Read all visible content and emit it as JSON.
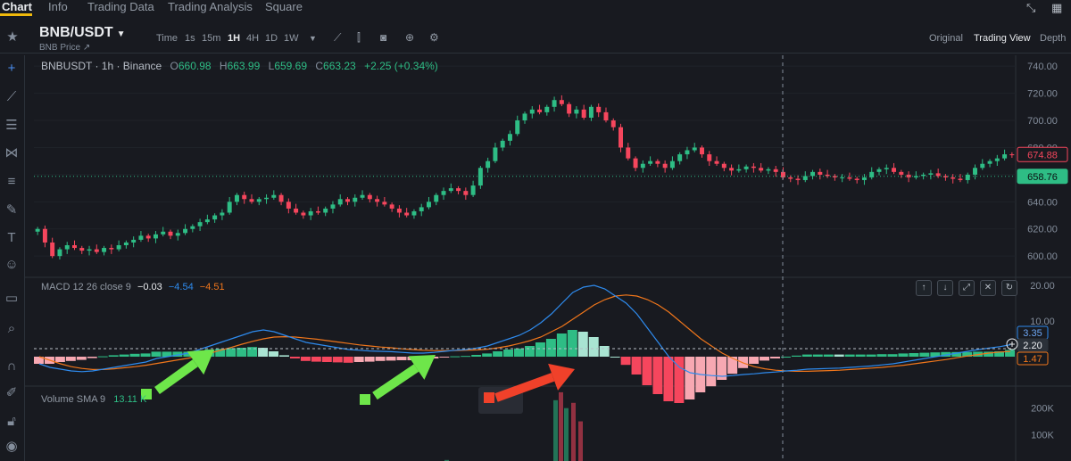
{
  "nav": {
    "tabs": [
      "Chart",
      "Info",
      "Trading Data",
      "Trading Analysis",
      "Square"
    ],
    "active": "Chart"
  },
  "toolbar": {
    "pair": "BNB/USDT",
    "subtitle": "BNB Price ↗",
    "timeframes": [
      "Time",
      "1s",
      "15m",
      "1H",
      "4H",
      "1D",
      "1W"
    ],
    "active_timeframe": "1H",
    "views": [
      "Original",
      "Trading View",
      "Depth"
    ],
    "active_view": "Trading View"
  },
  "icons": {
    "favorite": "star-icon",
    "tools": [
      "crosshair-icon",
      "trendline-icon",
      "horizontal-lines-icon",
      "pattern-icon",
      "fib-icon",
      "brush-icon",
      "text-icon",
      "emoji-icon",
      "ruler-icon",
      "zoom-icon",
      "magnet-icon",
      "lock-drawings-icon",
      "lock-icon",
      "eye-icon"
    ]
  },
  "legend": {
    "symbol": "BNBUSDT · 1h · Binance",
    "o": "660.98",
    "h": "663.99",
    "l": "659.69",
    "c": "663.23",
    "change": "+2.25 (+0.34%)"
  },
  "macd_legend": {
    "label": "MACD 12 26 close 9",
    "hist": "−0.03",
    "macd": "−4.54",
    "signal": "−4.51"
  },
  "volume_legend": {
    "label": "Volume SMA 9",
    "value": "13.11 K"
  },
  "price_axis": [
    "740.00",
    "720.00",
    "700.00",
    "680.00",
    "660.00",
    "640.00",
    "620.00",
    "600.00"
  ],
  "price_tags": {
    "current": "674.88",
    "crosshair": "658.76"
  },
  "macd_axis": [
    "20.00",
    "10.00"
  ],
  "macd_tags": {
    "macd": "3.35",
    "crosshair": "2.20",
    "signal": "1.47"
  },
  "volume_axis": [
    "200K",
    "100K"
  ],
  "colors": {
    "up": "#2ebd85",
    "down": "#f6465d",
    "macd": "#2e8bee",
    "signal": "#f0761b",
    "arrow_green": "#6ee64a",
    "arrow_red": "#f0412a",
    "background": "#181a20"
  },
  "chart_data": {
    "type": "candlestick",
    "timeframe": "1h",
    "price_range": [
      585,
      748
    ],
    "crosshair_price": 658.76,
    "last_price": 674.88,
    "closes": [
      620,
      610,
      600,
      605,
      608,
      606,
      604,
      605,
      603,
      606,
      605,
      608,
      610,
      612,
      615,
      613,
      616,
      618,
      615,
      617,
      620,
      622,
      625,
      627,
      630,
      632,
      640,
      645,
      642,
      640,
      642,
      643,
      645,
      640,
      635,
      632,
      630,
      633,
      632,
      635,
      638,
      642,
      640,
      643,
      645,
      642,
      640,
      638,
      635,
      632,
      630,
      633,
      636,
      640,
      645,
      648,
      650,
      648,
      645,
      652,
      665,
      670,
      680,
      685,
      690,
      700,
      705,
      708,
      706,
      710,
      715,
      712,
      705,
      708,
      702,
      710,
      706,
      700,
      695,
      680,
      672,
      665,
      668,
      670,
      668,
      665,
      670,
      675,
      678,
      680,
      675,
      670,
      668,
      665,
      663,
      664,
      666,
      665,
      663,
      664,
      662,
      658,
      657,
      656,
      659,
      662,
      660,
      659,
      658,
      658,
      657,
      656,
      658,
      662,
      664,
      665,
      662,
      660,
      658,
      659,
      660,
      661,
      659,
      658,
      657,
      656,
      660,
      665,
      668,
      670,
      672,
      675,
      674.88
    ],
    "macd_range": [
      -8,
      22
    ],
    "macd": [
      -2,
      -3,
      -3.5,
      -4,
      -4.2,
      -4,
      -3.5,
      -3,
      -2.5,
      -2,
      -1.5,
      -0.5,
      0,
      0.5,
      1,
      2,
      3,
      4,
      5,
      6,
      7,
      7.5,
      7,
      6,
      5,
      4,
      3.5,
      3,
      2.5,
      2,
      1.8,
      1.6,
      1.5,
      1.4,
      1.2,
      1,
      1,
      1.2,
      1.5,
      1.8,
      2,
      2.4,
      3,
      4,
      5,
      6,
      7.5,
      9.5,
      12,
      15,
      18,
      19.5,
      20,
      19,
      17,
      15,
      12,
      8,
      4,
      0,
      -3,
      -4.5,
      -5,
      -5.3,
      -5.5,
      -5.3,
      -5,
      -4.8,
      -4.5,
      -4.3,
      -4,
      -3.8,
      -3.5,
      -3.4,
      -3.3,
      -3.2,
      -3,
      -2.8,
      -2.6,
      -2.3,
      -2,
      -1.5,
      -1,
      -0.5,
      0,
      0.5,
      1,
      1.5,
      2,
      2.4,
      2.8,
      3.35
    ],
    "signal": [
      0,
      -1,
      -2,
      -2.8,
      -3.3,
      -3.6,
      -3.6,
      -3.4,
      -3.1,
      -2.8,
      -2.4,
      -1.9,
      -1.4,
      -0.9,
      -0.4,
      0.3,
      1,
      1.8,
      2.6,
      3.5,
      4.3,
      5,
      5.5,
      5.6,
      5.5,
      5.2,
      4.9,
      4.5,
      4.1,
      3.7,
      3.3,
      3,
      2.7,
      2.5,
      2.2,
      2,
      1.8,
      1.7,
      1.7,
      1.7,
      1.8,
      1.9,
      2.1,
      2.5,
      3,
      3.7,
      4.5,
      5.5,
      7,
      8.5,
      10.5,
      12.5,
      14.5,
      16,
      17,
      17.3,
      17,
      16,
      14.5,
      12.5,
      10,
      7.5,
      5,
      3,
      1,
      -0.5,
      -1.8,
      -2.8,
      -3.4,
      -3.8,
      -4,
      -4.1,
      -4.1,
      -4,
      -3.9,
      -3.8,
      -3.6,
      -3.4,
      -3.2,
      -3,
      -2.7,
      -2.4,
      -2,
      -1.6,
      -1.2,
      -0.8,
      -0.3,
      0.2,
      0.6,
      1,
      1.3,
      1.47
    ],
    "volume_axis_max": 280000
  }
}
